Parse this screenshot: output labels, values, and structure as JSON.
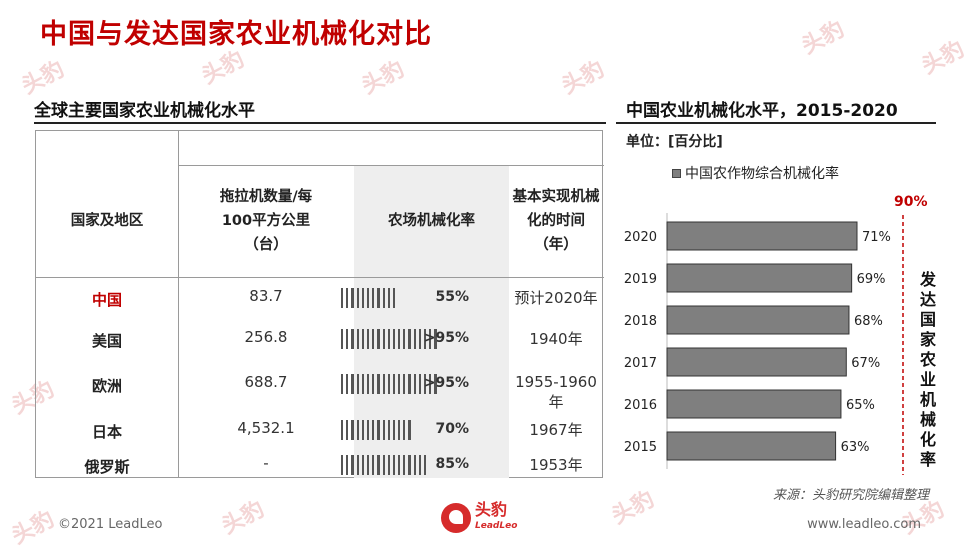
{
  "page": {
    "title": "中国与发达国家农业机械化对比",
    "copyright": "©2021 LeadLeo",
    "website": "www.leadleo.com",
    "source": "来源：头豹研究院编辑整理",
    "logo": {
      "cn": "头豹",
      "en": "LeadLeo"
    }
  },
  "left_panel": {
    "title": "全球主要国家农业机械化水平",
    "headers": {
      "country": "国家及地区",
      "tractors": "拖拉机数量/每\n100平方公里\n（台）",
      "mechanization": "农场机械化率",
      "year": "基本实现机械\n化的时间\n（年）"
    },
    "rows": [
      {
        "country": "中国",
        "tractors": "83.7",
        "rate_text": "55%",
        "ticks": 11,
        "year": "预计2020年"
      },
      {
        "country": "美国",
        "tractors": "256.8",
        "rate_text": ">95%",
        "ticks": 19,
        "year": "1940年"
      },
      {
        "country": "欧洲",
        "tractors": "688.7",
        "rate_text": ">95%",
        "ticks": 19,
        "year": "1955-1960年"
      },
      {
        "country": "日本",
        "tractors": "4,532.1",
        "rate_text": "70%",
        "ticks": 14,
        "year": "1967年"
      },
      {
        "country": "俄罗斯",
        "tractors": "-",
        "rate_text": "85%",
        "ticks": 17,
        "year": "1953年"
      }
    ]
  },
  "right_panel": {
    "title": "中国农业机械化水平，2015-2020",
    "unit": "单位：[百分比]",
    "target_label": "90%",
    "target_text": "发达国家农业机械化率",
    "colors": {
      "bar": "#7f7f7f",
      "target": "#c00000"
    }
  },
  "chart_data": {
    "type": "bar",
    "orientation": "horizontal",
    "categories": [
      "2020",
      "2019",
      "2018",
      "2017",
      "2016",
      "2015"
    ],
    "series": [
      {
        "name": "中国农作物综合机械化率",
        "values": [
          71,
          69,
          68,
          67,
          65,
          63
        ]
      }
    ],
    "value_labels": [
      "71%",
      "69%",
      "68%",
      "67%",
      "65%",
      "63%"
    ],
    "target_line": 90,
    "xlim": [
      0,
      90
    ],
    "grid": false,
    "legend": "top"
  }
}
